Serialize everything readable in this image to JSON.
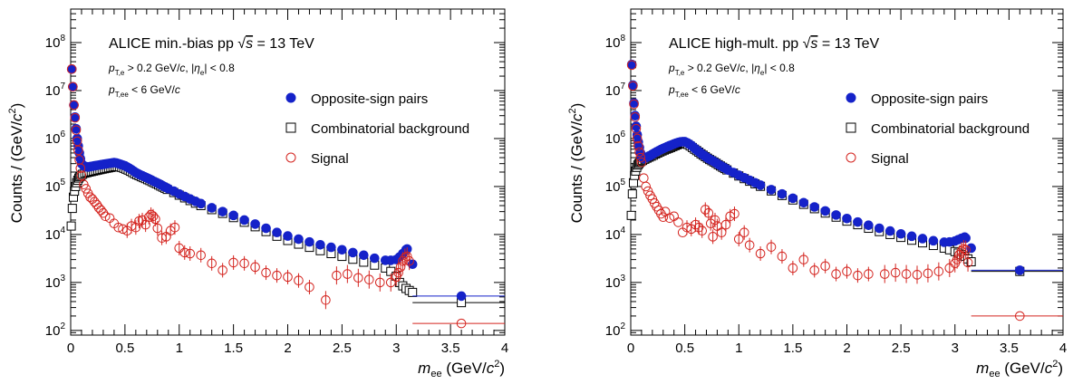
{
  "chart_data": [
    {
      "type": "scatter",
      "title": "ALICE min.-bias pp √s = 13 TeV",
      "title_prefix": "ALICE min.-bias pp",
      "energy_value": "= 13 TeV",
      "cut_line1": "> 0.2 GeV/c, |ηe| < 0.8",
      "cut_line2": "< 6 GeV/c",
      "xlabel": "mee (GeV/c²)",
      "ylabel": "Counts / (GeV/c²)",
      "xlim": [
        0,
        4
      ],
      "ylim": [
        80,
        500000000
      ],
      "yscale": "log",
      "xticks": [
        "0",
        "0.5",
        "1",
        "1.5",
        "2",
        "2.5",
        "3",
        "3.5",
        "4"
      ],
      "yticks": [
        "10²",
        "10³",
        "10⁴",
        "10⁵",
        "10⁶",
        "10⁷",
        "10⁸"
      ],
      "legend": [
        "Opposite-sign pairs",
        "Combinatorial background",
        "Signal"
      ],
      "legend_position": "top-right",
      "series": [
        {
          "name": "Opposite-sign pairs",
          "x": [
            0.01,
            0.02,
            0.03,
            0.04,
            0.05,
            0.06,
            0.07,
            0.08,
            0.09,
            0.1,
            0.12,
            0.14,
            0.16,
            0.18,
            0.2,
            0.22,
            0.24,
            0.26,
            0.28,
            0.3,
            0.32,
            0.34,
            0.36,
            0.38,
            0.4,
            0.42,
            0.44,
            0.46,
            0.48,
            0.5,
            0.52,
            0.54,
            0.56,
            0.58,
            0.6,
            0.62,
            0.64,
            0.66,
            0.68,
            0.7,
            0.72,
            0.74,
            0.76,
            0.78,
            0.8,
            0.82,
            0.84,
            0.86,
            0.88,
            0.9,
            0.95,
            1.0,
            1.05,
            1.1,
            1.15,
            1.2,
            1.3,
            1.4,
            1.5,
            1.6,
            1.7,
            1.8,
            1.9,
            2.0,
            2.1,
            2.2,
            2.3,
            2.4,
            2.5,
            2.6,
            2.7,
            2.8,
            2.9,
            2.95,
            3.0,
            3.03,
            3.06,
            3.09,
            3.1,
            3.15,
            3.6
          ],
          "y": [
            28000000,
            12000000,
            5000000,
            2800000,
            1600000,
            1000000,
            700000,
            500000,
            380000,
            300000,
            270000,
            260000,
            255000,
            260000,
            265000,
            270000,
            275000,
            280000,
            285000,
            290000,
            295000,
            300000,
            305000,
            310000,
            315000,
            310000,
            300000,
            290000,
            280000,
            270000,
            255000,
            240000,
            225000,
            210000,
            195000,
            185000,
            175000,
            168000,
            160000,
            152000,
            145000,
            138000,
            130000,
            124000,
            118000,
            112000,
            106000,
            100000,
            95000,
            90000,
            80000,
            70000,
            62000,
            55000,
            49000,
            44000,
            36000,
            30000,
            25000,
            20000,
            16500,
            13500,
            11000,
            9300,
            8000,
            7000,
            6100,
            5400,
            4800,
            4200,
            3700,
            3200,
            2900,
            2900,
            3000,
            3400,
            4000,
            4800,
            5000,
            2400,
            520
          ]
        },
        {
          "name": "Combinatorial background",
          "x": [
            0.005,
            0.015,
            0.025,
            0.035,
            0.045,
            0.055,
            0.065,
            0.075,
            0.085,
            0.095,
            0.11,
            0.13,
            0.15,
            0.17,
            0.19,
            0.21,
            0.23,
            0.25,
            0.27,
            0.29,
            0.31,
            0.33,
            0.35,
            0.37,
            0.39,
            0.41,
            0.43,
            0.45,
            0.47,
            0.49,
            0.51,
            0.53,
            0.55,
            0.57,
            0.59,
            0.61,
            0.63,
            0.65,
            0.67,
            0.69,
            0.71,
            0.73,
            0.75,
            0.77,
            0.79,
            0.81,
            0.83,
            0.85,
            0.87,
            0.89,
            0.95,
            1.0,
            1.05,
            1.1,
            1.15,
            1.2,
            1.3,
            1.4,
            1.5,
            1.6,
            1.7,
            1.8,
            1.9,
            2.0,
            2.1,
            2.2,
            2.3,
            2.4,
            2.5,
            2.6,
            2.7,
            2.8,
            2.9,
            2.95,
            3.0,
            3.03,
            3.06,
            3.09,
            3.12,
            3.15,
            3.6
          ],
          "y": [
            15000,
            35000,
            60000,
            80000,
            100000,
            120000,
            135000,
            150000,
            160000,
            170000,
            180000,
            190000,
            195000,
            200000,
            205000,
            210000,
            215000,
            220000,
            225000,
            230000,
            235000,
            240000,
            245000,
            250000,
            255000,
            260000,
            260000,
            258000,
            250000,
            240000,
            230000,
            220000,
            208000,
            196000,
            185000,
            176000,
            168000,
            160000,
            153000,
            146000,
            139000,
            133000,
            126000,
            120000,
            114000,
            108000,
            102000,
            97000,
            92000,
            87000,
            75000,
            66000,
            58000,
            51000,
            45000,
            40000,
            33000,
            27500,
            22500,
            18000,
            14500,
            11500,
            9200,
            7500,
            6300,
            5400,
            4600,
            4000,
            3500,
            3050,
            2650,
            2300,
            2000,
            1700,
            1350,
            1000,
            850,
            750,
            680,
            620,
            380
          ]
        },
        {
          "name": "Signal",
          "x": [
            0.01,
            0.02,
            0.03,
            0.04,
            0.05,
            0.06,
            0.07,
            0.08,
            0.09,
            0.1,
            0.12,
            0.14,
            0.16,
            0.18,
            0.2,
            0.22,
            0.24,
            0.26,
            0.28,
            0.3,
            0.32,
            0.36,
            0.4,
            0.44,
            0.48,
            0.52,
            0.56,
            0.6,
            0.63,
            0.66,
            0.69,
            0.72,
            0.74,
            0.76,
            0.78,
            0.8,
            0.84,
            0.88,
            0.92,
            0.96,
            1.0,
            1.05,
            1.1,
            1.2,
            1.3,
            1.4,
            1.5,
            1.6,
            1.7,
            1.8,
            1.9,
            2.0,
            2.1,
            2.2,
            2.35,
            2.45,
            2.55,
            2.65,
            2.75,
            2.85,
            2.95,
            3.0,
            3.02,
            3.04,
            3.06,
            3.08,
            3.1,
            3.12,
            3.6
          ],
          "y": [
            28000000,
            12000000,
            5000000,
            2700000,
            1500000,
            880000,
            570000,
            360000,
            240000,
            170000,
            110000,
            90000,
            72000,
            60000,
            55000,
            48000,
            42000,
            36000,
            32000,
            28000,
            24000,
            22000,
            17000,
            14000,
            13000,
            12000,
            15000,
            14000,
            19000,
            20000,
            16000,
            23000,
            26000,
            24000,
            21000,
            13500,
            8500,
            9000,
            12000,
            14000,
            5200,
            4200,
            4000,
            3700,
            2500,
            1800,
            2600,
            2500,
            2100,
            1600,
            1400,
            1300,
            1100,
            800,
            430,
            1400,
            1500,
            1250,
            1150,
            1000,
            1000,
            1300,
            1600,
            2100,
            2800,
            3300,
            3500,
            2800,
            140
          ]
        }
      ]
    },
    {
      "type": "scatter",
      "title": "ALICE high-mult. pp √s = 13 TeV",
      "title_prefix": "ALICE high-mult. pp",
      "energy_value": "= 13 TeV",
      "cut_line1": "> 0.2 GeV/c, |ηe| < 0.8",
      "cut_line2": "< 6 GeV/c",
      "xlabel": "mee (GeV/c²)",
      "ylabel": "Counts / (GeV/c²)",
      "xlim": [
        0,
        4
      ],
      "ylim": [
        80,
        500000000
      ],
      "yscale": "log",
      "xticks": [
        "0",
        "0.5",
        "1",
        "1.5",
        "2",
        "2.5",
        "3",
        "3.5",
        "4"
      ],
      "yticks": [
        "10²",
        "10³",
        "10⁴",
        "10⁵",
        "10⁶",
        "10⁷",
        "10⁸"
      ],
      "legend": [
        "Opposite-sign pairs",
        "Combinatorial background",
        "Signal"
      ],
      "legend_position": "top-right",
      "series": [
        {
          "name": "Opposite-sign pairs",
          "x": [
            0.01,
            0.02,
            0.03,
            0.04,
            0.05,
            0.06,
            0.07,
            0.08,
            0.09,
            0.1,
            0.12,
            0.14,
            0.16,
            0.18,
            0.2,
            0.22,
            0.24,
            0.26,
            0.28,
            0.3,
            0.32,
            0.34,
            0.36,
            0.38,
            0.4,
            0.42,
            0.44,
            0.46,
            0.48,
            0.5,
            0.52,
            0.54,
            0.56,
            0.58,
            0.6,
            0.62,
            0.64,
            0.66,
            0.68,
            0.7,
            0.72,
            0.74,
            0.76,
            0.78,
            0.8,
            0.82,
            0.84,
            0.86,
            0.88,
            0.9,
            0.95,
            1.0,
            1.05,
            1.1,
            1.15,
            1.2,
            1.3,
            1.4,
            1.5,
            1.6,
            1.7,
            1.8,
            1.9,
            2.0,
            2.1,
            2.2,
            2.3,
            2.4,
            2.5,
            2.6,
            2.7,
            2.8,
            2.9,
            2.95,
            3.0,
            3.03,
            3.06,
            3.09,
            3.1,
            3.15,
            3.6
          ],
          "y": [
            35000000,
            13000000,
            5500000,
            3000000,
            1800000,
            1200000,
            850000,
            650000,
            500000,
            420000,
            380000,
            400000,
            420000,
            440000,
            470000,
            500000,
            530000,
            560000,
            590000,
            620000,
            650000,
            680000,
            710000,
            740000,
            770000,
            800000,
            830000,
            850000,
            860000,
            860000,
            820000,
            770000,
            720000,
            660000,
            600000,
            550000,
            510000,
            470000,
            440000,
            410000,
            380000,
            360000,
            340000,
            320000,
            300000,
            280000,
            265000,
            250000,
            235000,
            220000,
            195000,
            172000,
            152000,
            135000,
            120000,
            107000,
            86000,
            70000,
            57000,
            46000,
            37500,
            31000,
            25500,
            21500,
            18200,
            15600,
            13500,
            11800,
            10300,
            9200,
            8200,
            7400,
            6900,
            7000,
            7300,
            7800,
            8300,
            8800,
            8400,
            5200,
            1800
          ]
        },
        {
          "name": "Combinatorial background",
          "x": [
            0.005,
            0.015,
            0.025,
            0.035,
            0.045,
            0.055,
            0.065,
            0.075,
            0.085,
            0.095,
            0.11,
            0.13,
            0.15,
            0.17,
            0.19,
            0.21,
            0.23,
            0.25,
            0.27,
            0.29,
            0.31,
            0.33,
            0.35,
            0.37,
            0.39,
            0.41,
            0.43,
            0.45,
            0.47,
            0.49,
            0.51,
            0.53,
            0.55,
            0.57,
            0.59,
            0.61,
            0.63,
            0.65,
            0.67,
            0.69,
            0.71,
            0.73,
            0.75,
            0.77,
            0.79,
            0.81,
            0.83,
            0.85,
            0.87,
            0.89,
            0.95,
            1.0,
            1.05,
            1.1,
            1.15,
            1.2,
            1.3,
            1.4,
            1.5,
            1.6,
            1.7,
            1.8,
            1.9,
            2.0,
            2.1,
            2.2,
            2.3,
            2.4,
            2.5,
            2.6,
            2.7,
            2.8,
            2.9,
            2.95,
            3.0,
            3.03,
            3.06,
            3.09,
            3.12,
            3.15,
            3.6
          ],
          "y": [
            25000,
            70000,
            120000,
            170000,
            210000,
            250000,
            280000,
            300000,
            320000,
            335000,
            350000,
            370000,
            390000,
            410000,
            430000,
            450000,
            475000,
            500000,
            525000,
            550000,
            575000,
            600000,
            625000,
            650000,
            680000,
            710000,
            740000,
            770000,
            800000,
            820000,
            790000,
            750000,
            700000,
            650000,
            600000,
            560000,
            520000,
            480000,
            450000,
            420000,
            390000,
            365000,
            345000,
            325000,
            305000,
            285000,
            268000,
            252000,
            237000,
            222000,
            190000,
            166000,
            146000,
            129000,
            114000,
            101000,
            81000,
            65000,
            52500,
            42500,
            34500,
            28000,
            23000,
            19000,
            16000,
            13500,
            11500,
            10000,
            8700,
            7600,
            6700,
            5900,
            5200,
            4800,
            4400,
            4100,
            3800,
            3500,
            3100,
            2700,
            1700
          ]
        },
        {
          "name": "Signal",
          "x": [
            0.01,
            0.02,
            0.03,
            0.04,
            0.05,
            0.06,
            0.07,
            0.08,
            0.09,
            0.1,
            0.12,
            0.14,
            0.16,
            0.18,
            0.2,
            0.22,
            0.24,
            0.26,
            0.28,
            0.3,
            0.32,
            0.36,
            0.4,
            0.44,
            0.48,
            0.52,
            0.56,
            0.6,
            0.63,
            0.66,
            0.69,
            0.72,
            0.74,
            0.76,
            0.78,
            0.8,
            0.84,
            0.88,
            0.92,
            0.96,
            1.0,
            1.05,
            1.1,
            1.2,
            1.3,
            1.4,
            1.5,
            1.6,
            1.7,
            1.8,
            1.9,
            2.0,
            2.1,
            2.2,
            2.35,
            2.45,
            2.55,
            2.65,
            2.75,
            2.85,
            2.95,
            3.0,
            3.02,
            3.04,
            3.06,
            3.08,
            3.1,
            3.12,
            3.6
          ],
          "y": [
            34000000,
            12500000,
            5200000,
            2800000,
            1600000,
            1000000,
            700000,
            520000,
            400000,
            320000,
            150000,
            100000,
            80000,
            65000,
            55000,
            45000,
            38000,
            32000,
            27000,
            23000,
            30000,
            22000,
            24000,
            18000,
            11000,
            14000,
            13000,
            16000,
            14000,
            12000,
            33000,
            28000,
            17000,
            9000,
            20000,
            15000,
            11000,
            16000,
            24000,
            27000,
            8000,
            11000,
            6000,
            4000,
            5500,
            3500,
            2000,
            3000,
            1800,
            2200,
            1500,
            1700,
            1400,
            1500,
            1500,
            1600,
            1500,
            1450,
            1550,
            1700,
            2000,
            2500,
            3000,
            3800,
            4500,
            5000,
            4800,
            2600,
            200
          ]
        }
      ]
    }
  ]
}
